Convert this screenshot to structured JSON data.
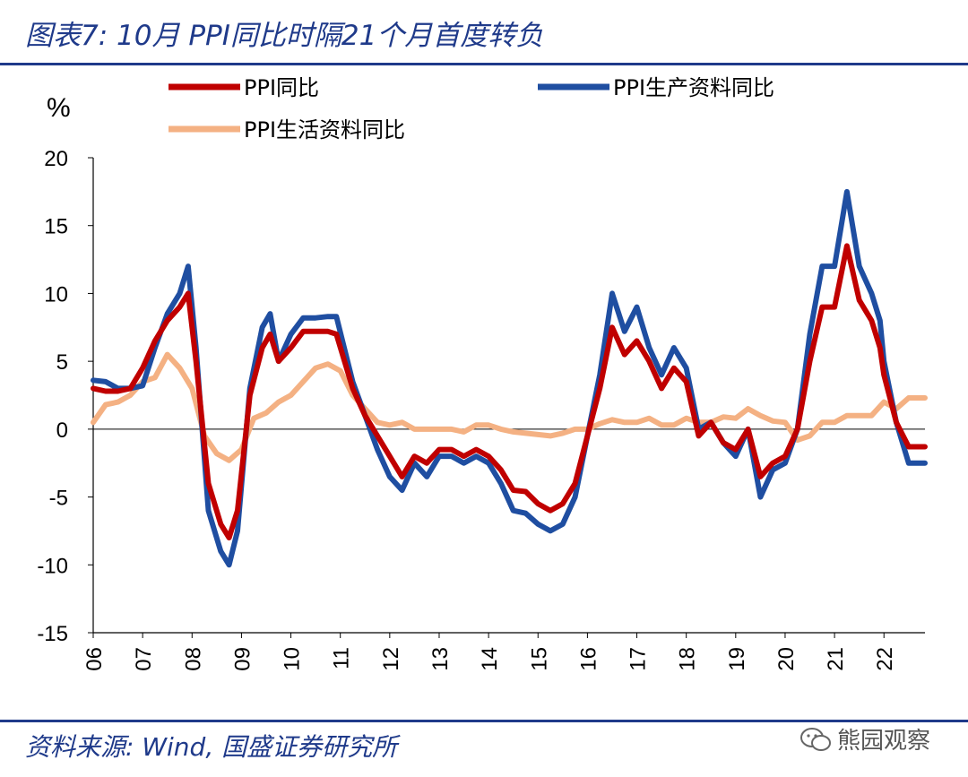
{
  "figure": {
    "title": "图表7: 10月 PPI同比时隔21个月首度转负",
    "source": "资料来源: Wind, 国盛证券研究所",
    "watermark": "熊园观察"
  },
  "chart_data": {
    "type": "line",
    "title": "图表7: 10月 PPI同比时隔21个月首度转负",
    "ylabel": "%",
    "xlabel": "",
    "ylim": [
      -15,
      20
    ],
    "xlim": [
      2006.0,
      2022.83
    ],
    "yticks": [
      -15,
      -10,
      -5,
      0,
      5,
      10,
      15,
      20
    ],
    "ytick_labels": [
      "-15",
      "-10",
      "-5",
      "0",
      "5",
      "10",
      "15",
      "20"
    ],
    "xticks": [
      2006,
      2007,
      2008,
      2009,
      2010,
      2011,
      2012,
      2013,
      2014,
      2015,
      2016,
      2017,
      2018,
      2019,
      2020,
      2021,
      2022
    ],
    "xtick_labels": [
      "06",
      "07",
      "08",
      "09",
      "10",
      "11",
      "12",
      "13",
      "14",
      "15",
      "16",
      "17",
      "18",
      "19",
      "20",
      "21",
      "22"
    ],
    "legend": [
      "PPI同比",
      "PPI生产资料同比",
      "PPI生活资料同比"
    ],
    "series": [
      {
        "name": "PPI同比",
        "color": "#c00000",
        "x": [
          2006.0,
          2006.25,
          2006.5,
          2006.75,
          2007.0,
          2007.25,
          2007.5,
          2007.75,
          2007.92,
          2008.08,
          2008.33,
          2008.58,
          2008.75,
          2008.92,
          2009.17,
          2009.42,
          2009.58,
          2009.75,
          2010.0,
          2010.25,
          2010.5,
          2010.75,
          2010.92,
          2011.25,
          2011.5,
          2011.75,
          2012.0,
          2012.25,
          2012.5,
          2012.75,
          2013.0,
          2013.25,
          2013.5,
          2013.75,
          2014.0,
          2014.25,
          2014.5,
          2014.75,
          2015.0,
          2015.25,
          2015.5,
          2015.75,
          2016.0,
          2016.25,
          2016.5,
          2016.75,
          2017.0,
          2017.25,
          2017.5,
          2017.75,
          2018.0,
          2018.25,
          2018.5,
          2018.75,
          2019.0,
          2019.25,
          2019.5,
          2019.75,
          2020.0,
          2020.25,
          2020.5,
          2020.75,
          2021.0,
          2021.25,
          2021.5,
          2021.75,
          2021.92,
          2022.0,
          2022.25,
          2022.5,
          2022.75,
          2022.83
        ],
        "y": [
          3.0,
          2.8,
          2.8,
          3.0,
          4.5,
          6.5,
          8.0,
          9.0,
          10.0,
          5.0,
          -4.0,
          -7.0,
          -8.0,
          -6.0,
          2.5,
          6.0,
          7.0,
          5.0,
          6.0,
          7.2,
          7.2,
          7.2,
          7.0,
          3.0,
          1.0,
          -0.5,
          -2.0,
          -3.5,
          -2.0,
          -2.5,
          -1.5,
          -1.5,
          -2.0,
          -1.5,
          -2.0,
          -3.0,
          -4.5,
          -4.6,
          -5.5,
          -6.0,
          -5.5,
          -4.0,
          -0.5,
          3.0,
          7.5,
          5.5,
          6.5,
          5.0,
          3.0,
          4.5,
          3.5,
          -0.5,
          0.5,
          -1.0,
          -1.5,
          0.0,
          -3.5,
          -2.5,
          -2.0,
          0.0,
          5.0,
          9.0,
          9.0,
          13.5,
          9.5,
          8.0,
          6.0,
          4.0,
          0.5,
          -1.3,
          -1.3,
          -1.3
        ]
      },
      {
        "name": "PPI生产资料同比",
        "color": "#1f4ea1",
        "x": [
          2006.0,
          2006.25,
          2006.5,
          2006.75,
          2007.0,
          2007.25,
          2007.5,
          2007.75,
          2007.92,
          2008.08,
          2008.33,
          2008.58,
          2008.75,
          2008.92,
          2009.17,
          2009.42,
          2009.58,
          2009.75,
          2010.0,
          2010.25,
          2010.5,
          2010.75,
          2010.92,
          2011.25,
          2011.5,
          2011.75,
          2012.0,
          2012.25,
          2012.5,
          2012.75,
          2013.0,
          2013.25,
          2013.5,
          2013.75,
          2014.0,
          2014.25,
          2014.5,
          2014.75,
          2015.0,
          2015.25,
          2015.5,
          2015.75,
          2016.0,
          2016.25,
          2016.5,
          2016.75,
          2017.0,
          2017.25,
          2017.5,
          2017.75,
          2018.0,
          2018.25,
          2018.5,
          2018.75,
          2019.0,
          2019.25,
          2019.5,
          2019.75,
          2020.0,
          2020.25,
          2020.5,
          2020.75,
          2021.0,
          2021.25,
          2021.5,
          2021.75,
          2021.92,
          2022.0,
          2022.25,
          2022.5,
          2022.75,
          2022.83
        ],
        "y": [
          3.6,
          3.5,
          3.0,
          3.0,
          3.2,
          6.0,
          8.5,
          10.0,
          12.0,
          6.0,
          -6.0,
          -9.0,
          -10.0,
          -7.5,
          3.0,
          7.5,
          8.5,
          5.0,
          7.0,
          8.2,
          8.2,
          8.3,
          8.3,
          3.5,
          1.0,
          -1.5,
          -3.5,
          -4.5,
          -2.5,
          -3.5,
          -2.0,
          -2.0,
          -2.5,
          -2.0,
          -2.5,
          -4.0,
          -6.0,
          -6.2,
          -7.0,
          -7.5,
          -7.0,
          -5.0,
          -0.5,
          4.0,
          10.0,
          7.2,
          9.0,
          6.0,
          4.0,
          6.0,
          4.5,
          0.0,
          0.5,
          -1.0,
          -2.0,
          0.0,
          -5.0,
          -3.0,
          -2.5,
          0.0,
          7.0,
          12.0,
          12.0,
          17.5,
          12.0,
          10.0,
          8.0,
          5.0,
          0.5,
          -2.5,
          -2.5,
          -2.5
        ]
      },
      {
        "name": "PPI生活资料同比",
        "color": "#f4b183",
        "x": [
          2006.0,
          2006.25,
          2006.5,
          2006.75,
          2007.0,
          2007.25,
          2007.5,
          2007.75,
          2008.0,
          2008.25,
          2008.5,
          2008.75,
          2009.0,
          2009.25,
          2009.5,
          2009.75,
          2010.0,
          2010.25,
          2010.5,
          2010.75,
          2011.0,
          2011.25,
          2011.5,
          2011.75,
          2012.0,
          2012.25,
          2012.5,
          2012.75,
          2013.0,
          2013.25,
          2013.5,
          2013.75,
          2014.0,
          2014.25,
          2014.5,
          2014.75,
          2015.0,
          2015.25,
          2015.5,
          2015.75,
          2016.0,
          2016.25,
          2016.5,
          2016.75,
          2017.0,
          2017.25,
          2017.5,
          2017.75,
          2018.0,
          2018.25,
          2018.5,
          2018.75,
          2019.0,
          2019.25,
          2019.5,
          2019.75,
          2020.0,
          2020.25,
          2020.5,
          2020.75,
          2021.0,
          2021.25,
          2021.5,
          2021.75,
          2022.0,
          2022.25,
          2022.5,
          2022.75,
          2022.83
        ],
        "y": [
          0.5,
          1.8,
          2.0,
          2.5,
          3.5,
          3.8,
          5.5,
          4.5,
          3.0,
          -0.5,
          -1.8,
          -2.3,
          -1.5,
          0.8,
          1.2,
          2.0,
          2.5,
          3.5,
          4.5,
          4.8,
          4.3,
          2.5,
          1.5,
          0.5,
          0.3,
          0.5,
          0.0,
          0.0,
          0.0,
          0.0,
          -0.2,
          0.3,
          0.3,
          0.0,
          -0.2,
          -0.3,
          -0.4,
          -0.5,
          -0.3,
          0.0,
          0.0,
          0.4,
          0.7,
          0.5,
          0.5,
          0.8,
          0.3,
          0.3,
          0.8,
          0.5,
          0.5,
          0.9,
          0.8,
          1.5,
          1.0,
          0.6,
          0.5,
          -0.8,
          -0.5,
          0.5,
          0.5,
          1.0,
          1.0,
          1.0,
          2.0,
          1.5,
          2.3,
          2.3,
          2.3
        ]
      }
    ]
  }
}
